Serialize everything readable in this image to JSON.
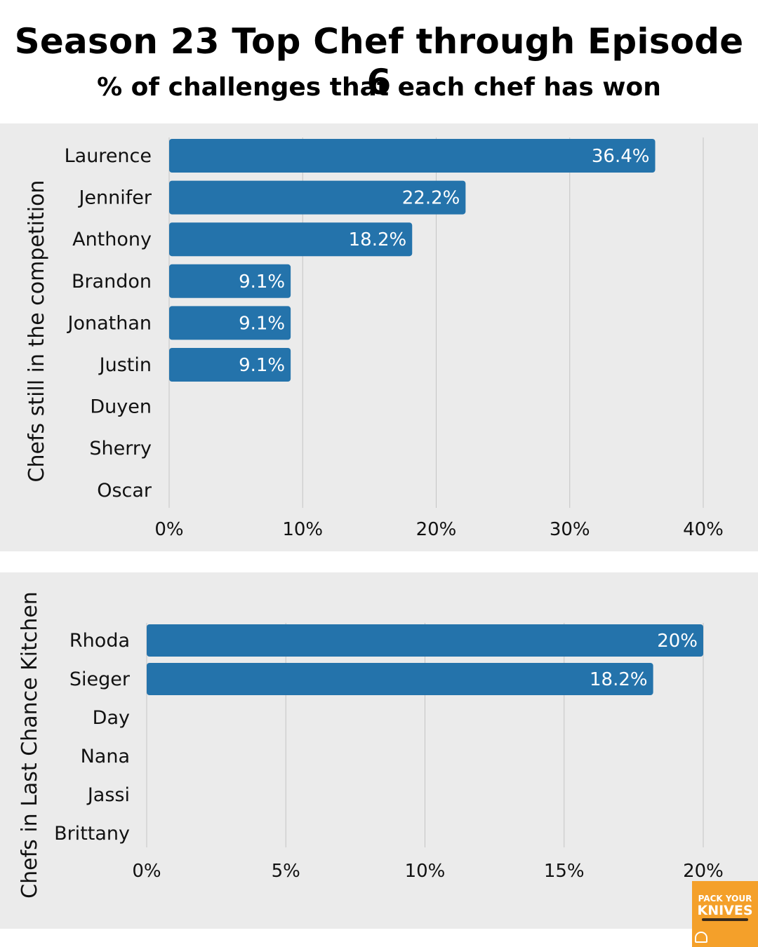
{
  "title": "Season 23 Top Chef through Episode 6",
  "subtitle": "% of challenges that each chef has won",
  "colors": {
    "bar": "#2473ab",
    "panel": "#ebebeb",
    "grid": "#c4c4c4",
    "bar_label": "#ffffff",
    "logo": "#f4a02a"
  },
  "logo": {
    "line1": "PACK YOUR",
    "line2": "KNIVES",
    "icon": "chef-hat-icon"
  },
  "chart_data": [
    {
      "type": "bar",
      "orientation": "horizontal",
      "ylabel": "Chefs still in the competition",
      "xlabel": "",
      "categories": [
        "Laurence",
        "Jennifer",
        "Anthony",
        "Brandon",
        "Jonathan",
        "Justin",
        "Duyen",
        "Sherry",
        "Oscar"
      ],
      "values": [
        36.4,
        22.2,
        18.2,
        9.1,
        9.1,
        9.1,
        0,
        0,
        0
      ],
      "data_labels": [
        "36.4%",
        "22.2%",
        "18.2%",
        "9.1%",
        "9.1%",
        "9.1%",
        "",
        "",
        ""
      ],
      "xlim": [
        0,
        40
      ],
      "ticks": [
        0,
        10,
        20,
        30,
        40
      ],
      "tick_labels": [
        "0%",
        "10%",
        "20%",
        "30%",
        "40%"
      ],
      "grid": true
    },
    {
      "type": "bar",
      "orientation": "horizontal",
      "ylabel": "Chefs in Last Chance Kitchen",
      "xlabel": "",
      "categories": [
        "Rhoda",
        "Sieger",
        "Day",
        "Nana",
        "Jassi",
        "Brittany"
      ],
      "values": [
        20,
        18.2,
        0,
        0,
        0,
        0
      ],
      "data_labels": [
        "20%",
        "18.2%",
        "",
        "",
        "",
        ""
      ],
      "xlim": [
        0,
        20
      ],
      "ticks": [
        0,
        5,
        10,
        15,
        20
      ],
      "tick_labels": [
        "0%",
        "5%",
        "10%",
        "15%",
        "20%"
      ],
      "grid": true
    }
  ]
}
